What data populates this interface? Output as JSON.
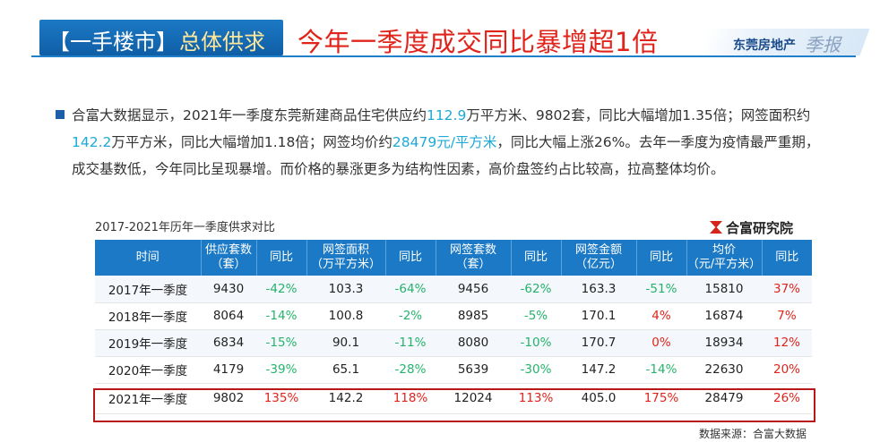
{
  "header": {
    "title_part1": "【一手楼市】",
    "title_part2": "总体供求",
    "headline": "今年一季度成交同比暴增超1倍",
    "brand": "东莞房地产",
    "brand_script": "季报"
  },
  "paragraph": {
    "line1": [
      {
        "t": "合富大数据显示，2021年一季度东莞新建商品住宅供应约",
        "c": "n"
      },
      {
        "t": "112.9",
        "c": "h"
      },
      {
        "t": "万平方米、9802套，同比大幅增加1.35倍；网签面积约",
        "c": "n"
      }
    ],
    "line2": [
      {
        "t": "142.2",
        "c": "h"
      },
      {
        "t": "万平方米，同比大幅增加1.18倍；网签均价约",
        "c": "n"
      },
      {
        "t": "28479元/平方米",
        "c": "h"
      },
      {
        "t": "，同比大幅上涨26%。去年一季度为疫情最严重期，",
        "c": "n"
      }
    ],
    "line3": [
      {
        "t": "成交基数低，今年同比呈现暴增。而价格的暴涨更多为结构性因素，高价盘签约占比较高，拉高整体均价。",
        "c": "n"
      }
    ]
  },
  "table": {
    "caption": "2017-2021年历年一季度供求对比",
    "source_top": "合富研究院",
    "source_bottom": "数据来源：合富大数据",
    "headers": [
      [
        "时间"
      ],
      [
        "供应套数",
        "（套）"
      ],
      [
        "同比"
      ],
      [
        "网签面积",
        "（万平方米）"
      ],
      [
        "同比"
      ],
      [
        "网签套数",
        "（套）"
      ],
      [
        "同比"
      ],
      [
        "网签金额",
        "（亿元）"
      ],
      [
        "同比"
      ],
      [
        "均价",
        "（元/平方米）"
      ],
      [
        "同比"
      ]
    ],
    "rows": [
      [
        "2017年一季度",
        "9430",
        "-42%",
        "103.3",
        "-64%",
        "9456",
        "-62%",
        "163.3",
        "-51%",
        "15810",
        "37%"
      ],
      [
        "2018年一季度",
        "8064",
        "-14%",
        "100.8",
        "-2%",
        "8985",
        "-5%",
        "170.1",
        "4%",
        "16874",
        "7%"
      ],
      [
        "2019年一季度",
        "6834",
        "-15%",
        "90.1",
        "-11%",
        "8080",
        "-10%",
        "170.7",
        "0%",
        "18934",
        "12%"
      ],
      [
        "2020年一季度",
        "4179",
        "-39%",
        "65.1",
        "-28%",
        "5639",
        "-30%",
        "147.2",
        "-14%",
        "22630",
        "20%"
      ],
      [
        "2021年一季度",
        "9802",
        "135%",
        "142.2",
        "118%",
        "12024",
        "113%",
        "405.0",
        "175%",
        "28479",
        "26%"
      ]
    ],
    "colors": {
      "negative": "#24b36b",
      "positive": "#e1241b",
      "header_bg": "#1b79c6"
    }
  }
}
